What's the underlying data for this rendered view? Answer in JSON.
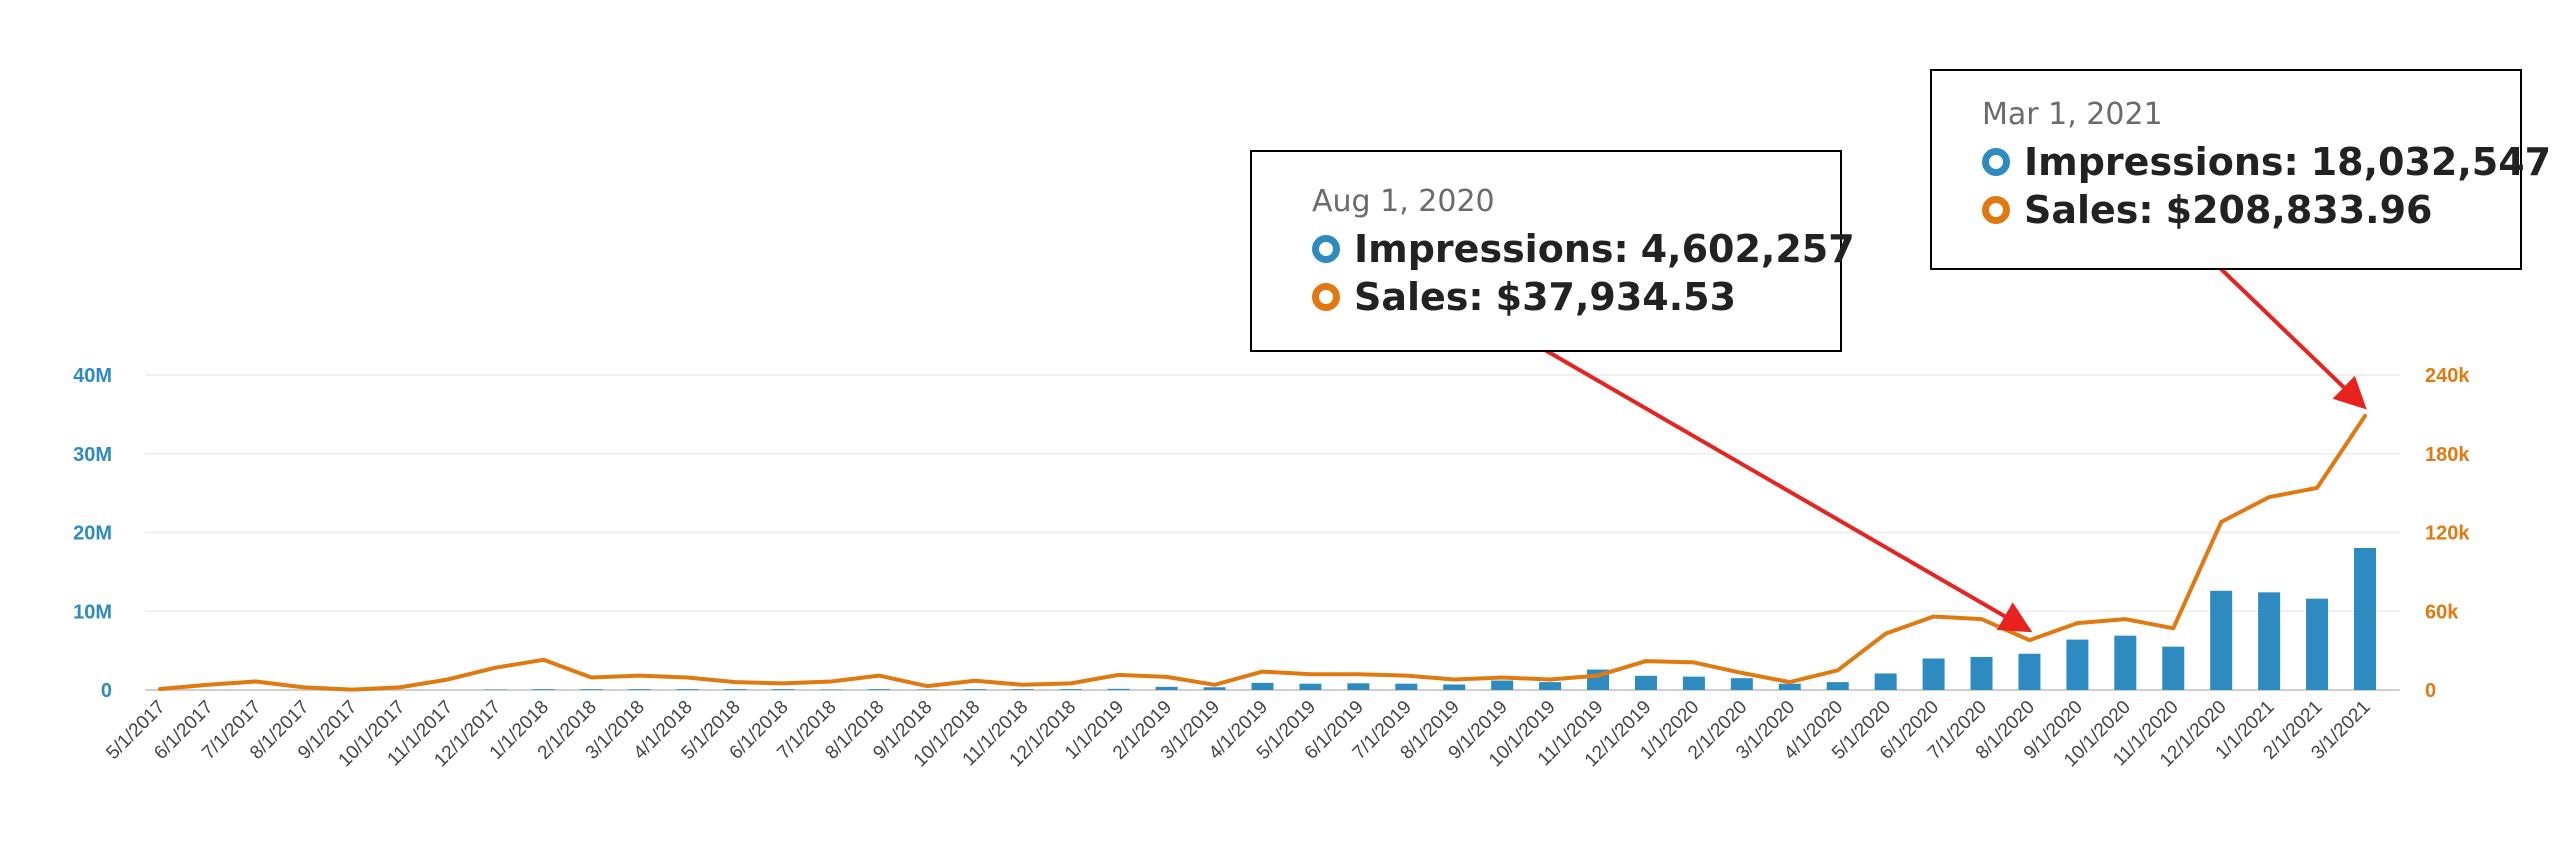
{
  "chart_data": {
    "type": "bar+line",
    "categories": [
      "5/1/2017",
      "6/1/2017",
      "7/1/2017",
      "8/1/2017",
      "9/1/2017",
      "10/1/2017",
      "11/1/2017",
      "12/1/2017",
      "1/1/2018",
      "2/1/2018",
      "3/1/2018",
      "4/1/2018",
      "5/1/2018",
      "6/1/2018",
      "7/1/2018",
      "8/1/2018",
      "9/1/2018",
      "10/1/2018",
      "11/1/2018",
      "12/1/2018",
      "1/1/2019",
      "2/1/2019",
      "3/1/2019",
      "4/1/2019",
      "5/1/2019",
      "6/1/2019",
      "7/1/2019",
      "8/1/2019",
      "9/1/2019",
      "10/1/2019",
      "11/1/2019",
      "12/1/2019",
      "1/1/2020",
      "2/1/2020",
      "3/1/2020",
      "4/1/2020",
      "5/1/2020",
      "6/1/2020",
      "7/1/2020",
      "8/1/2020",
      "9/1/2020",
      "10/1/2020",
      "11/1/2020",
      "12/1/2020",
      "1/1/2021",
      "2/1/2021",
      "3/1/2021"
    ],
    "series": [
      {
        "name": "Impressions",
        "type": "bar",
        "axis": "left",
        "color": "#2e8bc0",
        "values": [
          0,
          0,
          0,
          0,
          0,
          0,
          0,
          50000,
          100000,
          100000,
          100000,
          100000,
          100000,
          100000,
          50000,
          100000,
          50000,
          100000,
          100000,
          100000,
          150000,
          400000,
          350000,
          900000,
          800000,
          850000,
          800000,
          700000,
          1200000,
          1000000,
          2600000,
          1800000,
          1700000,
          1500000,
          800000,
          1000000,
          2100000,
          4000000,
          4200000,
          4602257,
          6400000,
          6900000,
          5500000,
          12600000,
          12400000,
          11600000,
          18032547
        ]
      },
      {
        "name": "Sales",
        "type": "line",
        "axis": "right",
        "color": "#e07a10",
        "values": [
          800,
          4000,
          6500,
          2000,
          300,
          2000,
          8000,
          17000,
          23000,
          9500,
          11000,
          9500,
          6000,
          5000,
          6500,
          11000,
          3000,
          7000,
          4000,
          5000,
          11500,
          10000,
          4000,
          14000,
          12000,
          12000,
          11000,
          8000,
          9500,
          8000,
          11000,
          22000,
          21000,
          13000,
          6000,
          15000,
          43000,
          56000,
          54000,
          37934.53,
          51000,
          54000,
          47000,
          128000,
          147000,
          154000,
          208833.96
        ]
      }
    ],
    "yaxis_left": {
      "ticks": [
        "0",
        "10M",
        "20M",
        "30M",
        "40M"
      ],
      "tick_values": [
        0,
        10000000,
        20000000,
        30000000,
        40000000
      ],
      "range": [
        0,
        40000000
      ],
      "color": "#2e8bc0"
    },
    "yaxis_right": {
      "ticks": [
        "0",
        "60k",
        "120k",
        "180k",
        "240k"
      ],
      "tick_values": [
        0,
        60000,
        120000,
        180000,
        240000
      ],
      "range": [
        0,
        240000
      ],
      "color": "#e07a10"
    },
    "grid": true,
    "annotations_color": "#e8231f"
  },
  "callouts": [
    {
      "date": "Aug 1, 2020",
      "impressions_label": "Impressions:",
      "impressions_value": "4,602,257",
      "sales_label": "Sales:",
      "sales_value": "$37,934.53",
      "target_index": 39,
      "target_series": "Sales"
    },
    {
      "date": "Mar 1, 2021",
      "impressions_label": "Impressions:",
      "impressions_value": "18,032,547",
      "sales_label": "Sales:",
      "sales_value": "$208,833.96",
      "target_index": 46,
      "target_series": "Sales"
    }
  ],
  "colors": {
    "impressions_dot": "#2e8bc0",
    "sales_dot": "#e07a10"
  }
}
